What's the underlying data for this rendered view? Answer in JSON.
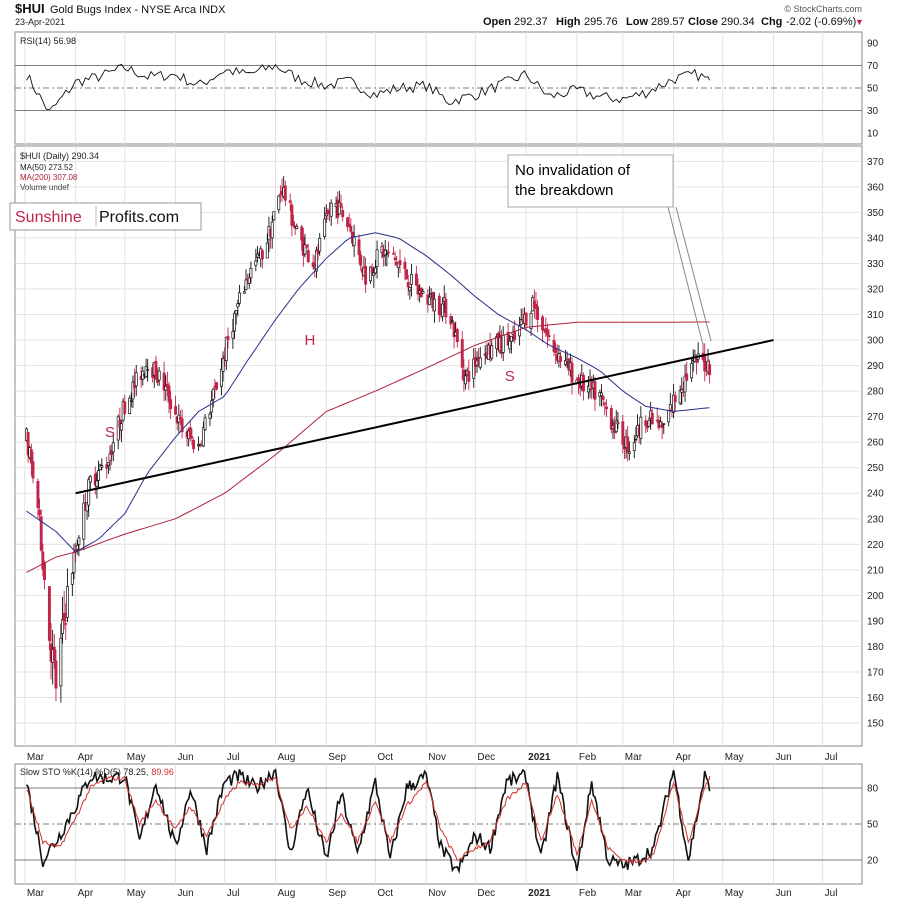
{
  "header": {
    "symbol": "$HUI",
    "name": "Gold Bugs Index - NYSE Arca INDX",
    "date": "23-Apr-2021",
    "watermark": "© StockCharts.com",
    "open_label": "Open",
    "open": "292.37",
    "high_label": "High",
    "high": "295.76",
    "low_label": "Low",
    "low": "289.57",
    "close_label": "Close",
    "close": "290.34",
    "chg_label": "Chg",
    "chg": "-2.02 (-0.69%)",
    "chg_marker": "▼"
  },
  "logo": {
    "part1": "Sunshine",
    "part2": "Profits.com"
  },
  "colors": {
    "up": "#111111",
    "down": "#c0254a",
    "ma50": "#2b2f8a",
    "ma200": "#b0203a",
    "stoch_d": "#d03030"
  },
  "chart_data": [
    {
      "type": "line",
      "panel": "rsi",
      "legend": "RSI(14) 56.98",
      "ylim": [
        0,
        100
      ],
      "yticks": [
        10,
        30,
        50,
        70,
        90
      ],
      "reference_lines": [
        30,
        50,
        70
      ],
      "series": [
        {
          "x": [
            "2020-03-02",
            "2020-03-16",
            "2020-04-01",
            "2020-04-15",
            "2020-05-01",
            "2020-05-15",
            "2020-06-01",
            "2020-06-15",
            "2020-07-01",
            "2020-07-15",
            "2020-08-01",
            "2020-08-15",
            "2020-09-01",
            "2020-09-15",
            "2020-10-01",
            "2020-10-15",
            "2020-11-01",
            "2020-11-15",
            "2020-12-01",
            "2020-12-15",
            "2021-01-01",
            "2021-01-15",
            "2021-02-01",
            "2021-02-15",
            "2021-03-01",
            "2021-03-15",
            "2021-04-01",
            "2021-04-15",
            "2021-04-23"
          ],
          "values": [
            62,
            28,
            55,
            60,
            68,
            60,
            62,
            52,
            66,
            62,
            70,
            58,
            52,
            56,
            44,
            50,
            52,
            38,
            44,
            52,
            62,
            42,
            48,
            42,
            40,
            46,
            58,
            62,
            57
          ]
        }
      ]
    },
    {
      "type": "candlestick",
      "panel": "price",
      "legend": [
        "$HUI (Daily) 290.34",
        "MA(50) 273.52",
        "MA(200) 307.08",
        "Volume undef"
      ],
      "ylim": [
        141,
        376
      ],
      "yticks": [
        150,
        160,
        170,
        180,
        190,
        200,
        210,
        220,
        230,
        240,
        250,
        260,
        270,
        280,
        290,
        300,
        310,
        320,
        330,
        340,
        350,
        360,
        370
      ],
      "xticks": [
        "Mar",
        "Apr",
        "May",
        "Jun",
        "Jul",
        "Aug",
        "Sep",
        "Oct",
        "Nov",
        "Dec",
        "2021",
        "Feb",
        "Mar",
        "Apr",
        "May",
        "Jun",
        "Jul"
      ],
      "xtick_dates": [
        "2020-03-01",
        "2020-04-01",
        "2020-05-01",
        "2020-06-01",
        "2020-07-01",
        "2020-08-01",
        "2020-09-01",
        "2020-10-01",
        "2020-11-01",
        "2020-12-01",
        "2021-01-01",
        "2021-02-01",
        "2021-03-01",
        "2021-04-01",
        "2021-05-01",
        "2021-06-01",
        "2021-07-01"
      ],
      "price_anchors": {
        "x": [
          "2020-03-02",
          "2020-03-09",
          "2020-03-16",
          "2020-03-20",
          "2020-03-27",
          "2020-04-03",
          "2020-04-10",
          "2020-04-20",
          "2020-05-01",
          "2020-05-15",
          "2020-05-25",
          "2020-06-05",
          "2020-06-15",
          "2020-06-25",
          "2020-07-05",
          "2020-07-15",
          "2020-07-25",
          "2020-08-05",
          "2020-08-15",
          "2020-08-25",
          "2020-09-05",
          "2020-09-15",
          "2020-09-25",
          "2020-10-05",
          "2020-10-15",
          "2020-10-25",
          "2020-11-05",
          "2020-11-15",
          "2020-11-25",
          "2020-12-05",
          "2020-12-15",
          "2020-12-25",
          "2021-01-05",
          "2021-01-15",
          "2021-01-25",
          "2021-02-05",
          "2021-02-15",
          "2021-02-25",
          "2021-03-05",
          "2021-03-15",
          "2021-03-25",
          "2021-04-05",
          "2021-04-15",
          "2021-04-23"
        ],
        "close": [
          262,
          235,
          185,
          165,
          200,
          225,
          245,
          252,
          275,
          292,
          282,
          265,
          258,
          280,
          305,
          325,
          335,
          360,
          340,
          330,
          355,
          345,
          325,
          335,
          330,
          320,
          315,
          312,
          285,
          295,
          298,
          300,
          315,
          300,
          290,
          282,
          278,
          265,
          258,
          270,
          265,
          282,
          292,
          290.34
        ]
      },
      "ma50": {
        "x": [
          "2020-03-02",
          "2020-03-20",
          "2020-04-01",
          "2020-04-15",
          "2020-05-01",
          "2020-05-15",
          "2020-06-01",
          "2020-06-15",
          "2020-07-01",
          "2020-07-15",
          "2020-08-01",
          "2020-08-15",
          "2020-09-01",
          "2020-09-15",
          "2020-10-01",
          "2020-10-15",
          "2020-11-01",
          "2020-11-15",
          "2020-12-01",
          "2020-12-15",
          "2021-01-01",
          "2021-01-15",
          "2021-02-01",
          "2021-02-15",
          "2021-03-01",
          "2021-03-15",
          "2021-04-01",
          "2021-04-15",
          "2021-04-23"
        ],
        "values": [
          233,
          225,
          217,
          222,
          232,
          248,
          262,
          272,
          278,
          292,
          308,
          320,
          332,
          340,
          342,
          340,
          333,
          326,
          317,
          310,
          304,
          298,
          293,
          288,
          280,
          274,
          272,
          273,
          273.52
        ]
      },
      "ma200": {
        "x": [
          "2020-03-02",
          "2020-03-20",
          "2020-04-01",
          "2020-05-01",
          "2020-06-01",
          "2020-07-01",
          "2020-08-01",
          "2020-09-01",
          "2020-10-01",
          "2020-11-01",
          "2020-12-01",
          "2021-01-01",
          "2021-02-01",
          "2021-03-01",
          "2021-04-01",
          "2021-04-23"
        ],
        "values": [
          209,
          215,
          217,
          224,
          230,
          240,
          255,
          272,
          280,
          289,
          298,
          305,
          307,
          307,
          307,
          307.08
        ]
      },
      "trendline": {
        "x": [
          "2020-04-01",
          "2021-06-01"
        ],
        "values": [
          240,
          300
        ]
      },
      "annotations": [
        {
          "text": "S",
          "x": "2020-04-22",
          "y": 262
        },
        {
          "text": "H",
          "x": "2020-08-22",
          "y": 298
        },
        {
          "text": "S",
          "x": "2020-12-22",
          "y": 284
        }
      ],
      "callout": {
        "lines": [
          "No invalidation of",
          "the breakdown"
        ]
      }
    },
    {
      "type": "line",
      "panel": "stochastic",
      "legend": {
        "prefix": "Slow STO %K(14) %D(5) 78.25,",
        "d_value": "89.96"
      },
      "ylim": [
        0,
        100
      ],
      "yticks": [
        20,
        50,
        80
      ],
      "reference_lines": [
        20,
        50,
        80
      ],
      "series": [
        {
          "name": "%K",
          "x": [
            "2020-03-02",
            "2020-03-12",
            "2020-03-22",
            "2020-04-01",
            "2020-04-10",
            "2020-04-20",
            "2020-05-01",
            "2020-05-10",
            "2020-05-20",
            "2020-06-01",
            "2020-06-10",
            "2020-06-20",
            "2020-07-01",
            "2020-07-10",
            "2020-07-20",
            "2020-08-01",
            "2020-08-10",
            "2020-08-20",
            "2020-09-01",
            "2020-09-10",
            "2020-09-20",
            "2020-10-01",
            "2020-10-10",
            "2020-10-20",
            "2020-11-01",
            "2020-11-10",
            "2020-11-20",
            "2020-12-01",
            "2020-12-10",
            "2020-12-20",
            "2021-01-01",
            "2021-01-10",
            "2021-01-20",
            "2021-02-01",
            "2021-02-10",
            "2021-02-20",
            "2021-03-01",
            "2021-03-10",
            "2021-03-20",
            "2021-04-01",
            "2021-04-10",
            "2021-04-20",
            "2021-04-23"
          ],
          "values": [
            85,
            20,
            40,
            65,
            90,
            88,
            90,
            35,
            85,
            30,
            80,
            30,
            85,
            90,
            80,
            95,
            25,
            80,
            20,
            75,
            25,
            85,
            20,
            80,
            90,
            30,
            10,
            40,
            30,
            85,
            90,
            20,
            90,
            10,
            85,
            20,
            15,
            20,
            30,
            95,
            20,
            90,
            78.25
          ]
        },
        {
          "name": "%D",
          "x": [
            "2020-03-02",
            "2020-03-12",
            "2020-03-22",
            "2020-04-01",
            "2020-04-10",
            "2020-04-20",
            "2020-05-01",
            "2020-05-10",
            "2020-05-20",
            "2020-06-01",
            "2020-06-10",
            "2020-06-20",
            "2020-07-01",
            "2020-07-10",
            "2020-07-20",
            "2020-08-01",
            "2020-08-10",
            "2020-08-20",
            "2020-09-01",
            "2020-09-10",
            "2020-09-20",
            "2020-10-01",
            "2020-10-10",
            "2020-10-20",
            "2020-11-01",
            "2020-11-10",
            "2020-11-20",
            "2020-12-01",
            "2020-12-10",
            "2020-12-20",
            "2021-01-01",
            "2021-01-10",
            "2021-01-20",
            "2021-02-01",
            "2021-02-10",
            "2021-02-20",
            "2021-03-01",
            "2021-03-10",
            "2021-03-20",
            "2021-04-01",
            "2021-04-10",
            "2021-04-20",
            "2021-04-23"
          ],
          "values": [
            80,
            35,
            30,
            55,
            80,
            88,
            88,
            50,
            70,
            45,
            65,
            40,
            70,
            85,
            82,
            90,
            45,
            65,
            35,
            60,
            35,
            70,
            35,
            65,
            85,
            45,
            20,
            30,
            35,
            70,
            85,
            35,
            75,
            25,
            70,
            30,
            20,
            18,
            25,
            85,
            35,
            80,
            89.96
          ]
        }
      ]
    }
  ]
}
